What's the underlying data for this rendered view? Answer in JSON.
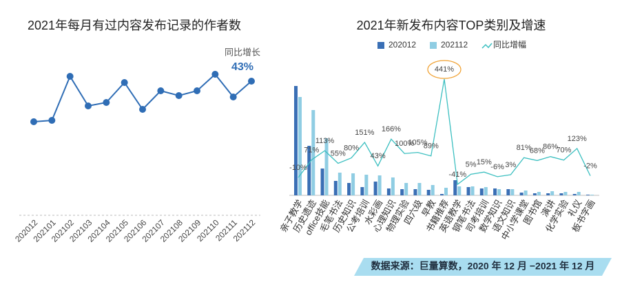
{
  "chart_data": [
    {
      "type": "line",
      "title": "2021年每月有过内容发布记录的作者数",
      "categories": [
        "202012",
        "202101",
        "202102",
        "202103",
        "202104",
        "202105",
        "202106",
        "202107",
        "202108",
        "202109",
        "202110",
        "202111",
        "202112"
      ],
      "values": [
        23,
        25,
        89,
        46,
        51,
        80,
        41,
        68,
        61,
        68,
        92,
        59,
        82
      ],
      "color": "#2f6db5",
      "annotation_title": "同比增长",
      "annotation_value": "43%"
    },
    {
      "type": "bar",
      "title": "2021年新发布内容TOP类别及增速",
      "categories": [
        "亲子教学",
        "历史遗迹",
        "office技能",
        "毛笔书法",
        "历史知识",
        "公考培训",
        "水彩画",
        "心理知识",
        "物理实验",
        "四六级",
        "早教",
        "书籍推荐",
        "英语教学",
        "钢笔书法",
        "司考培训",
        "数学知识",
        "语文知识",
        "中小学课堂",
        "图书馆",
        "演讲",
        "化学实验",
        "礼仪",
        "板书字画"
      ],
      "series": [
        {
          "name": "202012",
          "color": "#3a6fb5",
          "values": [
            159,
            72,
            39,
            21,
            18,
            12,
            20,
            10,
            9,
            9,
            8,
            2,
            22,
            12,
            10,
            10,
            9,
            4,
            3,
            3,
            3,
            2,
            1
          ]
        },
        {
          "name": "202112",
          "color": "#8fcde3",
          "values": [
            143,
            124,
            83,
            33,
            32,
            30,
            29,
            26,
            18,
            18,
            15,
            11,
            13,
            13,
            12,
            9,
            9,
            7,
            5,
            6,
            5,
            5,
            1
          ]
        },
        {
          "name": "同比增幅",
          "type": "line",
          "axis": "y2",
          "color": "#3bbfc0",
          "values": [
            -10,
            71,
            113,
            55,
            80,
            151,
            43,
            166,
            100,
            105,
            89,
            441,
            -41,
            5,
            15,
            -6,
            3,
            81,
            68,
            86,
            70,
            123,
            -2
          ],
          "value_labels": [
            "-10%",
            "71%",
            "113%",
            "55%",
            "80%",
            "151%",
            "43%",
            "166%",
            "100%",
            "105%",
            "89%",
            "441%",
            "-41%",
            "5%",
            "15%",
            "-6%",
            "3%",
            "81%",
            "68%",
            "86%",
            "70%",
            "123%",
            "-2%"
          ]
        }
      ],
      "source": "数据来源：巨量算数，2020 年 12 月 −2021 年 12 月"
    }
  ]
}
